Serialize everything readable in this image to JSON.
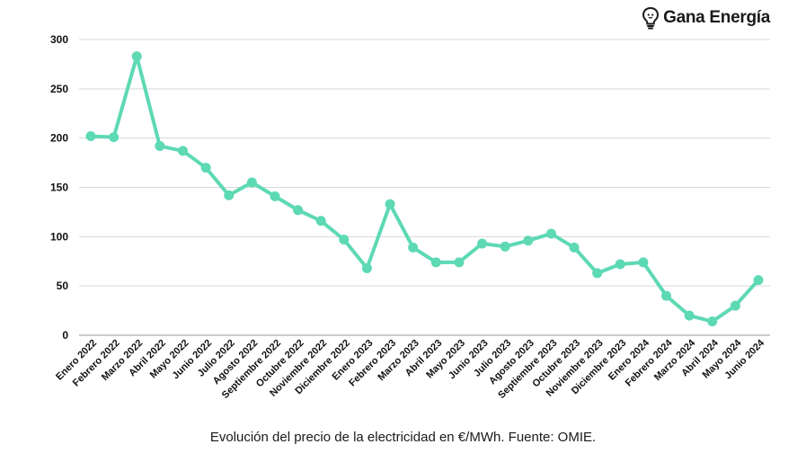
{
  "brand": {
    "name": "Gana Energía",
    "icon": "lightbulb-icon",
    "color": "#1a1a1a"
  },
  "caption": "Evolución del precio de la electricidad en €/MWh. Fuente: OMIE.",
  "chart_data": {
    "type": "line",
    "title": "",
    "xlabel": "",
    "ylabel": "",
    "ylim": [
      0,
      300
    ],
    "yticks": [
      "0",
      "50",
      "100",
      "150",
      "200",
      "250",
      "300"
    ],
    "grid": true,
    "legend": "none",
    "line_color": "#5dd9b4",
    "categories": [
      "Enero 2022",
      "Febrero 2022",
      "Marzo 2022",
      "Abril 2022",
      "Mayo 2022",
      "Junio 2022",
      "Julio 2022",
      "Agosto 2022",
      "Septiembre 2022",
      "Octubre 2022",
      "Noviembre 2022",
      "Diciembre 2022",
      "Enero 2023",
      "Febrero 2023",
      "Marzo 2023",
      "Abril 2023",
      "Mayo 2023",
      "Junio 2023",
      "Julio 2023",
      "Agosto 2023",
      "Septiembre 2023",
      "Octubre 2023",
      "Noviembre 2023",
      "Diciembre 2023",
      "Enero 2024",
      "Febrero 2024",
      "Marzo 2024",
      "Abril 2024",
      "Mayo 2024",
      "Junio 2024"
    ],
    "series": [
      {
        "values": [
          202,
          201,
          283,
          192,
          187,
          170,
          142,
          155,
          141,
          127,
          116,
          97,
          68,
          133,
          89,
          74,
          74,
          93,
          90,
          96,
          103,
          89,
          63,
          72,
          74,
          40,
          20,
          14,
          30,
          56
        ]
      }
    ]
  }
}
